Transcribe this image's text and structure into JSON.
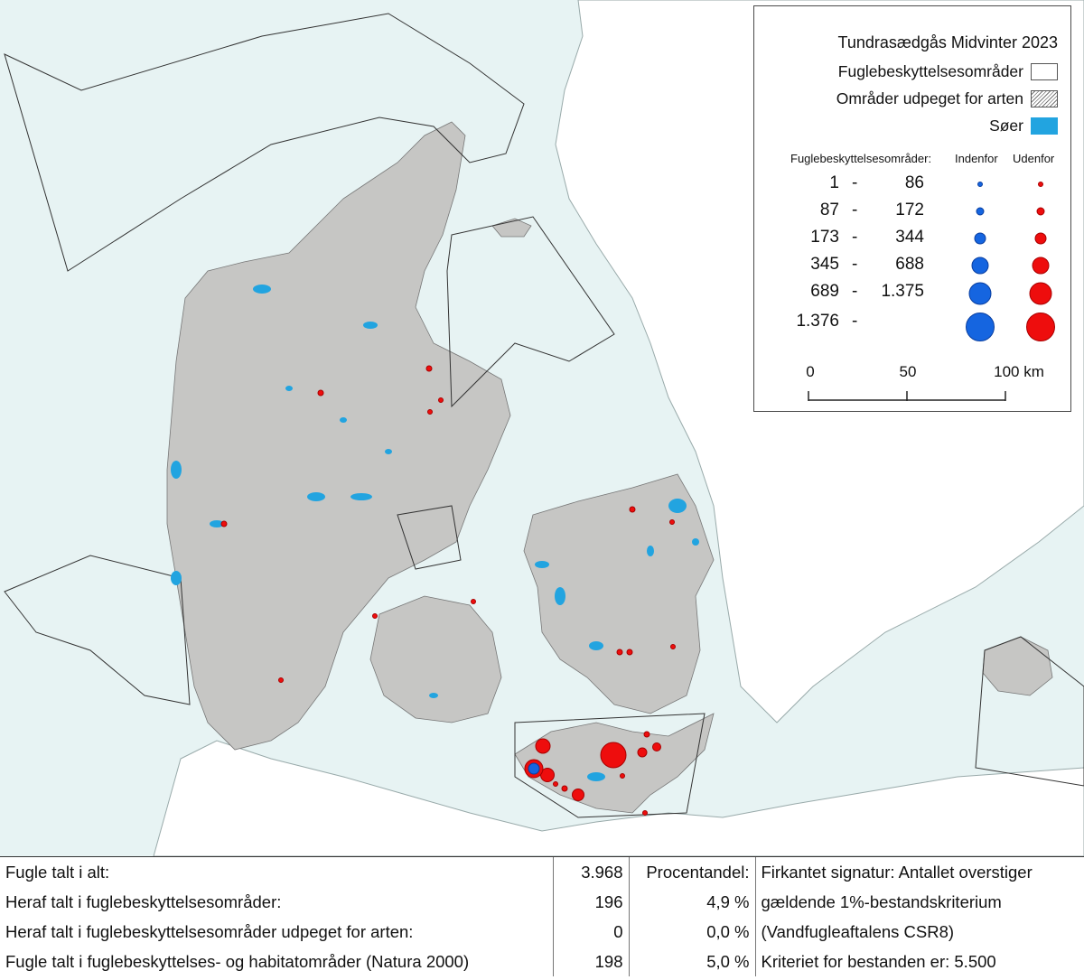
{
  "legend": {
    "title": "Tundrasædgås Midvinter 2023",
    "items": [
      {
        "label": "Fuglebeskyttelsesområder",
        "swatch": "white"
      },
      {
        "label": "Områder udpeget for arten",
        "swatch": "hatched"
      },
      {
        "label": "Søer",
        "swatch": "lake"
      }
    ],
    "size_header": {
      "label": "Fuglebeskyttelsesområder:",
      "inside": "Indenfor",
      "outside": "Udenfor"
    },
    "size_classes": [
      {
        "low": "1",
        "high": "86"
      },
      {
        "low": "87",
        "high": "172"
      },
      {
        "low": "173",
        "high": "344"
      },
      {
        "low": "345",
        "high": "688"
      },
      {
        "low": "689",
        "high": "1.375"
      },
      {
        "low": "1.376",
        "high": ""
      }
    ],
    "scale": {
      "ticks": [
        "0",
        "50",
        "100 km"
      ]
    }
  },
  "colors": {
    "sea": "#e7f3f3",
    "land": "#c6c6c4",
    "lake": "#22a4e0",
    "inside_marker": "#1565e0",
    "outside_marker": "#ee0d0d"
  },
  "stats": {
    "rows": [
      {
        "label": "Fugle talt i alt:",
        "count": "3.968",
        "pct": "Procentandel:",
        "note": "Firkantet signatur: Antallet overstiger"
      },
      {
        "label": "Heraf talt i fuglebeskyttelsesområder:",
        "count": "196",
        "pct": "4,9 %",
        "note": "gældende 1%-bestandskriterium"
      },
      {
        "label": "Heraf talt i fuglebeskyttelsesområder udpeget for arten:",
        "count": "0",
        "pct": "0,0 %",
        "note": "(Vandfugleaftalens CSR8)"
      },
      {
        "label": "Fugle talt i fuglebeskyttelses- og habitatområder (Natura 2000)",
        "count": "198",
        "pct": "5,0 %",
        "note": "Kriteriet for bestanden er: 5.500"
      }
    ]
  }
}
